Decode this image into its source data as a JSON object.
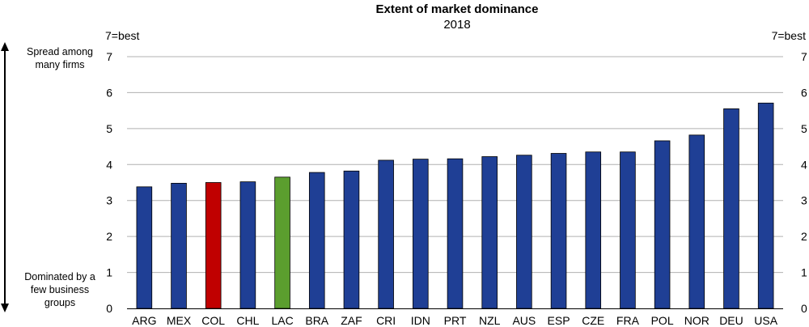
{
  "chart_data": {
    "type": "bar",
    "title": "Extent of market dominance",
    "subtitle": "2018",
    "y_unit_left": "7=best",
    "y_unit_right": "7=best",
    "ylim": [
      0,
      7
    ],
    "yticks": [
      "0",
      "1",
      "2",
      "3",
      "4",
      "5",
      "6",
      "7"
    ],
    "grid": true,
    "categories": [
      "ARG",
      "MEX",
      "COL",
      "CHL",
      "LAC",
      "BRA",
      "ZAF",
      "CRI",
      "IDN",
      "PRT",
      "NZL",
      "AUS",
      "ESP",
      "CZE",
      "FRA",
      "POL",
      "NOR",
      "DEU",
      "USA"
    ],
    "values": [
      3.38,
      3.48,
      3.5,
      3.52,
      3.65,
      3.78,
      3.82,
      4.12,
      4.15,
      4.16,
      4.22,
      4.26,
      4.31,
      4.35,
      4.35,
      4.66,
      4.82,
      5.55,
      5.71
    ],
    "colors": {
      "default": "#1f3f95",
      "COL": "#c00000",
      "LAC": "#5b9e2e",
      "grid": "#b0b0b0"
    },
    "annotations": {
      "top": [
        "Spread among",
        "many firms"
      ],
      "bottom": [
        "Dominated by a",
        "few business",
        "groups"
      ]
    }
  }
}
